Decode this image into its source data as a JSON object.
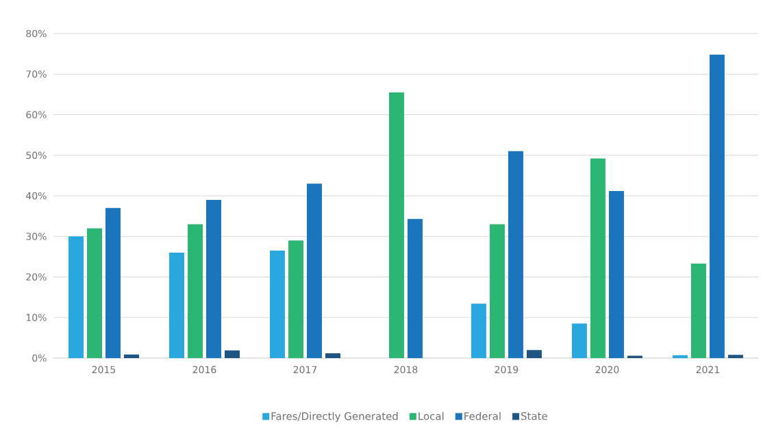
{
  "chart_data": {
    "type": "bar",
    "categories": [
      "2015",
      "2016",
      "2017",
      "2018",
      "2019",
      "2020",
      "2021"
    ],
    "series": [
      {
        "name": "Fares/Directly Generated",
        "color": "#29a8e0",
        "values": [
          30,
          26,
          26.5,
          null,
          13.4,
          8.5,
          0.7
        ]
      },
      {
        "name": "Local",
        "color": "#2bb673",
        "values": [
          32,
          33,
          29,
          65.5,
          33,
          49.2,
          23.3
        ]
      },
      {
        "name": "Federal",
        "color": "#1b75bc",
        "values": [
          37,
          39,
          43,
          34.3,
          51,
          41.2,
          74.8
        ]
      },
      {
        "name": "State",
        "color": "#1f5583",
        "values": [
          0.9,
          1.9,
          1.2,
          null,
          2,
          0.6,
          0.8
        ]
      }
    ],
    "ylim": [
      0,
      80
    ],
    "yticks": [
      {
        "value": 0,
        "label": "0%"
      },
      {
        "value": 10,
        "label": "10%"
      },
      {
        "value": 20,
        "label": "20%"
      },
      {
        "value": 30,
        "label": "30%"
      },
      {
        "value": 40,
        "label": "40%"
      },
      {
        "value": 50,
        "label": "50%"
      },
      {
        "value": 60,
        "label": "60%"
      },
      {
        "value": 70,
        "label": "70%"
      },
      {
        "value": 80,
        "label": "80%"
      }
    ],
    "grid": "y",
    "legend": "bottom"
  }
}
